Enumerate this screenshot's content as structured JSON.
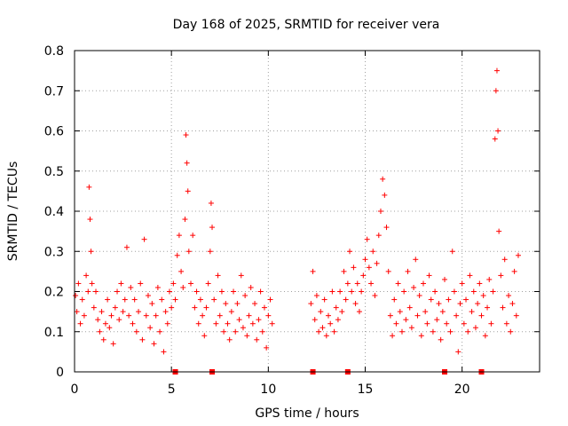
{
  "chart_data": {
    "type": "scatter",
    "title": "Day 168 of 2025, SRMTID for receiver vera",
    "xlabel": "GPS time / hours",
    "ylabel": "SRMTID / TECUs",
    "xlim": [
      0,
      24
    ],
    "ylim": [
      0,
      0.8
    ],
    "x_ticks": [
      0,
      5,
      10,
      15,
      20
    ],
    "x_tick_labels": [
      "0",
      "5",
      "10",
      "15",
      "20"
    ],
    "y_ticks": [
      0,
      0.1,
      0.2,
      0.3,
      0.4,
      0.5,
      0.6,
      0.7,
      0.8
    ],
    "y_tick_labels": [
      "0",
      "0.1",
      "0.2",
      "0.3",
      "0.4",
      "0.5",
      "0.6",
      "0.7",
      "0.8"
    ],
    "grid": true,
    "marker": "+",
    "color": "#ff0000",
    "zero_markers_x": [
      5.2,
      7.1,
      12.3,
      14.1,
      19.1,
      21.0
    ],
    "series": [
      {
        "name": "SRMTID",
        "points": [
          [
            0.05,
            0.19
          ],
          [
            0.12,
            0.15
          ],
          [
            0.2,
            0.22
          ],
          [
            0.3,
            0.12
          ],
          [
            0.4,
            0.18
          ],
          [
            0.5,
            0.14
          ],
          [
            0.6,
            0.24
          ],
          [
            0.7,
            0.2
          ],
          [
            0.75,
            0.46
          ],
          [
            0.8,
            0.38
          ],
          [
            0.85,
            0.3
          ],
          [
            0.9,
            0.22
          ],
          [
            1.0,
            0.16
          ],
          [
            1.1,
            0.2
          ],
          [
            1.2,
            0.13
          ],
          [
            1.3,
            0.1
          ],
          [
            1.4,
            0.15
          ],
          [
            1.5,
            0.08
          ],
          [
            1.6,
            0.12
          ],
          [
            1.7,
            0.18
          ],
          [
            1.8,
            0.11
          ],
          [
            1.9,
            0.14
          ],
          [
            2.0,
            0.07
          ],
          [
            2.1,
            0.16
          ],
          [
            2.2,
            0.2
          ],
          [
            2.3,
            0.13
          ],
          [
            2.4,
            0.22
          ],
          [
            2.5,
            0.15
          ],
          [
            2.6,
            0.18
          ],
          [
            2.7,
            0.31
          ],
          [
            2.8,
            0.14
          ],
          [
            2.9,
            0.21
          ],
          [
            3.0,
            0.12
          ],
          [
            3.1,
            0.18
          ],
          [
            3.2,
            0.1
          ],
          [
            3.3,
            0.15
          ],
          [
            3.4,
            0.22
          ],
          [
            3.5,
            0.08
          ],
          [
            3.6,
            0.33
          ],
          [
            3.7,
            0.14
          ],
          [
            3.8,
            0.19
          ],
          [
            3.9,
            0.11
          ],
          [
            4.0,
            0.17
          ],
          [
            4.1,
            0.07
          ],
          [
            4.2,
            0.14
          ],
          [
            4.3,
            0.21
          ],
          [
            4.4,
            0.1
          ],
          [
            4.5,
            0.18
          ],
          [
            4.6,
            0.05
          ],
          [
            4.7,
            0.15
          ],
          [
            4.8,
            0.12
          ],
          [
            4.9,
            0.2
          ],
          [
            5.0,
            0.16
          ],
          [
            5.1,
            0.22
          ],
          [
            5.2,
            0.18
          ],
          [
            5.3,
            0.29
          ],
          [
            5.4,
            0.34
          ],
          [
            5.5,
            0.25
          ],
          [
            5.6,
            0.21
          ],
          [
            5.7,
            0.38
          ],
          [
            5.75,
            0.59
          ],
          [
            5.8,
            0.52
          ],
          [
            5.85,
            0.45
          ],
          [
            5.9,
            0.3
          ],
          [
            6.0,
            0.22
          ],
          [
            6.1,
            0.34
          ],
          [
            6.2,
            0.16
          ],
          [
            6.3,
            0.2
          ],
          [
            6.4,
            0.12
          ],
          [
            6.5,
            0.18
          ],
          [
            6.6,
            0.14
          ],
          [
            6.7,
            0.09
          ],
          [
            6.8,
            0.16
          ],
          [
            6.9,
            0.22
          ],
          [
            7.0,
            0.3
          ],
          [
            7.05,
            0.42
          ],
          [
            7.1,
            0.36
          ],
          [
            7.2,
            0.18
          ],
          [
            7.3,
            0.12
          ],
          [
            7.4,
            0.24
          ],
          [
            7.5,
            0.14
          ],
          [
            7.6,
            0.2
          ],
          [
            7.7,
            0.1
          ],
          [
            7.8,
            0.17
          ],
          [
            7.9,
            0.12
          ],
          [
            8.0,
            0.08
          ],
          [
            8.1,
            0.15
          ],
          [
            8.2,
            0.2
          ],
          [
            8.3,
            0.1
          ],
          [
            8.4,
            0.17
          ],
          [
            8.5,
            0.13
          ],
          [
            8.6,
            0.24
          ],
          [
            8.7,
            0.11
          ],
          [
            8.8,
            0.19
          ],
          [
            8.9,
            0.09
          ],
          [
            9.0,
            0.14
          ],
          [
            9.1,
            0.21
          ],
          [
            9.2,
            0.12
          ],
          [
            9.3,
            0.17
          ],
          [
            9.4,
            0.08
          ],
          [
            9.5,
            0.13
          ],
          [
            9.6,
            0.2
          ],
          [
            9.7,
            0.1
          ],
          [
            9.8,
            0.16
          ],
          [
            9.9,
            0.06
          ],
          [
            10.0,
            0.14
          ],
          [
            10.1,
            0.18
          ],
          [
            10.2,
            0.12
          ],
          [
            12.2,
            0.17
          ],
          [
            12.3,
            0.25
          ],
          [
            12.4,
            0.13
          ],
          [
            12.5,
            0.19
          ],
          [
            12.6,
            0.1
          ],
          [
            12.7,
            0.15
          ],
          [
            12.8,
            0.11
          ],
          [
            12.9,
            0.18
          ],
          [
            13.0,
            0.09
          ],
          [
            13.1,
            0.14
          ],
          [
            13.2,
            0.12
          ],
          [
            13.3,
            0.2
          ],
          [
            13.4,
            0.1
          ],
          [
            13.5,
            0.16
          ],
          [
            13.6,
            0.13
          ],
          [
            13.7,
            0.2
          ],
          [
            13.8,
            0.15
          ],
          [
            13.9,
            0.25
          ],
          [
            14.0,
            0.18
          ],
          [
            14.1,
            0.22
          ],
          [
            14.2,
            0.3
          ],
          [
            14.3,
            0.2
          ],
          [
            14.4,
            0.26
          ],
          [
            14.5,
            0.17
          ],
          [
            14.6,
            0.22
          ],
          [
            14.7,
            0.15
          ],
          [
            14.8,
            0.2
          ],
          [
            14.9,
            0.24
          ],
          [
            15.0,
            0.28
          ],
          [
            15.1,
            0.33
          ],
          [
            15.2,
            0.26
          ],
          [
            15.3,
            0.22
          ],
          [
            15.4,
            0.3
          ],
          [
            15.5,
            0.19
          ],
          [
            15.6,
            0.27
          ],
          [
            15.7,
            0.34
          ],
          [
            15.8,
            0.4
          ],
          [
            15.9,
            0.48
          ],
          [
            16.0,
            0.44
          ],
          [
            16.1,
            0.36
          ],
          [
            16.2,
            0.25
          ],
          [
            16.3,
            0.14
          ],
          [
            16.4,
            0.09
          ],
          [
            16.5,
            0.18
          ],
          [
            16.6,
            0.12
          ],
          [
            16.7,
            0.22
          ],
          [
            16.8,
            0.15
          ],
          [
            16.9,
            0.1
          ],
          [
            17.0,
            0.2
          ],
          [
            17.1,
            0.13
          ],
          [
            17.2,
            0.25
          ],
          [
            17.3,
            0.16
          ],
          [
            17.4,
            0.11
          ],
          [
            17.5,
            0.21
          ],
          [
            17.6,
            0.28
          ],
          [
            17.7,
            0.14
          ],
          [
            17.8,
            0.19
          ],
          [
            17.9,
            0.09
          ],
          [
            18.0,
            0.22
          ],
          [
            18.1,
            0.15
          ],
          [
            18.2,
            0.12
          ],
          [
            18.3,
            0.24
          ],
          [
            18.4,
            0.18
          ],
          [
            18.5,
            0.1
          ],
          [
            18.6,
            0.2
          ],
          [
            18.7,
            0.13
          ],
          [
            18.8,
            0.17
          ],
          [
            18.9,
            0.08
          ],
          [
            19.0,
            0.15
          ],
          [
            19.1,
            0.23
          ],
          [
            19.2,
            0.12
          ],
          [
            19.3,
            0.18
          ],
          [
            19.4,
            0.1
          ],
          [
            19.5,
            0.3
          ],
          [
            19.6,
            0.2
          ],
          [
            19.7,
            0.14
          ],
          [
            19.8,
            0.05
          ],
          [
            19.9,
            0.17
          ],
          [
            20.0,
            0.22
          ],
          [
            20.1,
            0.12
          ],
          [
            20.2,
            0.18
          ],
          [
            20.3,
            0.1
          ],
          [
            20.4,
            0.24
          ],
          [
            20.5,
            0.15
          ],
          [
            20.6,
            0.2
          ],
          [
            20.7,
            0.11
          ],
          [
            20.8,
            0.17
          ],
          [
            20.9,
            0.22
          ],
          [
            21.0,
            0.14
          ],
          [
            21.1,
            0.19
          ],
          [
            21.2,
            0.09
          ],
          [
            21.3,
            0.16
          ],
          [
            21.4,
            0.23
          ],
          [
            21.5,
            0.12
          ],
          [
            21.6,
            0.2
          ],
          [
            21.7,
            0.58
          ],
          [
            21.75,
            0.7
          ],
          [
            21.8,
            0.75
          ],
          [
            21.85,
            0.6
          ],
          [
            21.9,
            0.35
          ],
          [
            22.0,
            0.24
          ],
          [
            22.1,
            0.16
          ],
          [
            22.2,
            0.28
          ],
          [
            22.3,
            0.12
          ],
          [
            22.4,
            0.19
          ],
          [
            22.5,
            0.1
          ],
          [
            22.6,
            0.17
          ],
          [
            22.7,
            0.25
          ],
          [
            22.8,
            0.14
          ],
          [
            22.9,
            0.29
          ]
        ]
      }
    ]
  }
}
